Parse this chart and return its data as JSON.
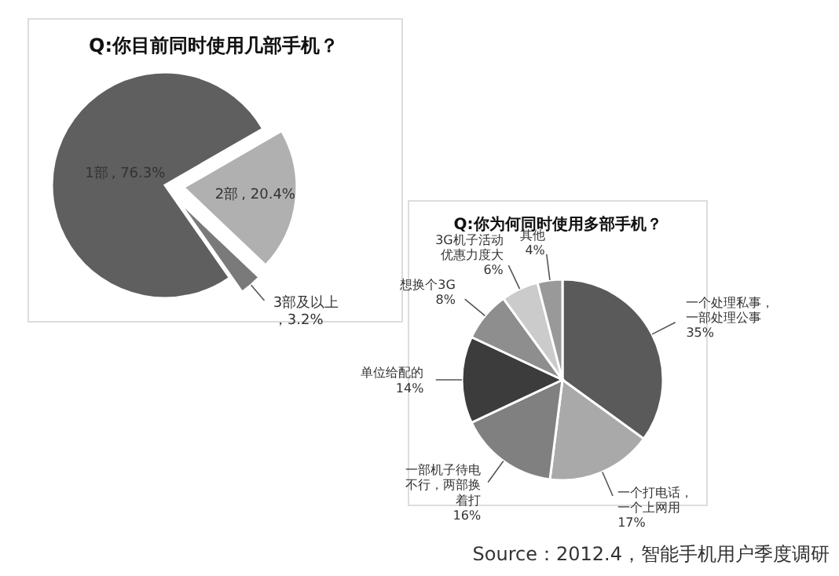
{
  "chart_data": [
    {
      "type": "pie",
      "title": "Q:你目前同时使用几部手机？",
      "categories": [
        "1部",
        "2部",
        "3部及以上"
      ],
      "values": [
        76.3,
        20.4,
        3.2
      ],
      "value_labels": [
        ", 76.3%",
        ", 20.4%",
        "，3.2%"
      ],
      "colors": [
        "#5f5f5f",
        "#b0b0b0",
        "#7a7a7a"
      ]
    },
    {
      "type": "pie",
      "title": "Q:你为何同时使用多部手机？",
      "categories": [
        "一个处理私事，一部处理公事",
        "一个打电话，一个上网用",
        "一部机子待电不行，两部换着打",
        "单位给配的",
        "想换个3G",
        "3G机子活动优惠力度大",
        "其他"
      ],
      "values": [
        35,
        17,
        16,
        14,
        8,
        6,
        4
      ],
      "value_labels": [
        "35%",
        "17%",
        "16%",
        "14%",
        "8%",
        "6%",
        "4%"
      ],
      "colors": [
        "#5a5a5a",
        "#a9a9a9",
        "#808080",
        "#3c3c3c",
        "#8e8e8e",
        "#cbcbcb",
        "#999999"
      ],
      "annotations": [
        "Source：2012.4，智能手机用户季度调研"
      ]
    }
  ]
}
